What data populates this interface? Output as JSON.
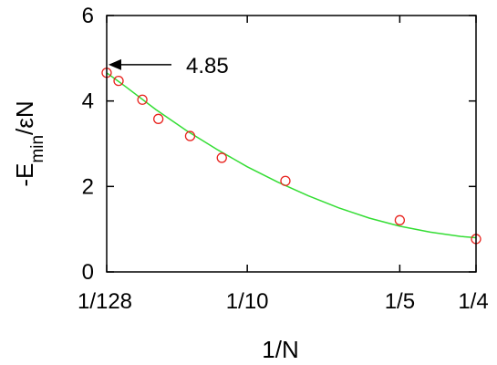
{
  "chart_data": {
    "type": "scatter",
    "xlabel": "1/N",
    "ylabel": "-E",
    "ylabel_sub": "min",
    "ylabel_tail": "/εN",
    "xlim": [
      0.0078125,
      0.25
    ],
    "ylim": [
      0,
      6
    ],
    "x_ticks": [
      {
        "value": 0.0078125,
        "label": "1/128"
      },
      {
        "value": 0.1,
        "label": "1/10"
      },
      {
        "value": 0.2,
        "label": "1/5"
      },
      {
        "value": 0.25,
        "label": "1/4"
      }
    ],
    "y_ticks": [
      0,
      2,
      4,
      6
    ],
    "series": [
      {
        "kind": "points",
        "marker": "open-circle",
        "color": "#e8231e",
        "points": [
          {
            "x": 0.0078,
            "y": 4.66
          },
          {
            "x": 0.0156,
            "y": 4.47
          },
          {
            "x": 0.0312,
            "y": 4.03
          },
          {
            "x": 0.0417,
            "y": 3.58
          },
          {
            "x": 0.0625,
            "y": 3.18
          },
          {
            "x": 0.0833,
            "y": 2.67
          },
          {
            "x": 0.125,
            "y": 2.13
          },
          {
            "x": 0.2,
            "y": 1.21
          },
          {
            "x": 0.25,
            "y": 0.77
          }
        ]
      },
      {
        "kind": "fit",
        "color": "#33dd33",
        "points": [
          {
            "x": 0.0078,
            "y": 4.66
          },
          {
            "x": 0.02,
            "y": 4.34
          },
          {
            "x": 0.04,
            "y": 3.8
          },
          {
            "x": 0.06,
            "y": 3.31
          },
          {
            "x": 0.08,
            "y": 2.87
          },
          {
            "x": 0.1,
            "y": 2.46
          },
          {
            "x": 0.12,
            "y": 2.1
          },
          {
            "x": 0.14,
            "y": 1.78
          },
          {
            "x": 0.16,
            "y": 1.5
          },
          {
            "x": 0.18,
            "y": 1.26
          },
          {
            "x": 0.2,
            "y": 1.07
          },
          {
            "x": 0.22,
            "y": 0.93
          },
          {
            "x": 0.24,
            "y": 0.83
          },
          {
            "x": 0.25,
            "y": 0.8
          }
        ]
      }
    ],
    "annotation": {
      "text": "4.85",
      "x": 0.0078,
      "y": 4.85
    }
  }
}
